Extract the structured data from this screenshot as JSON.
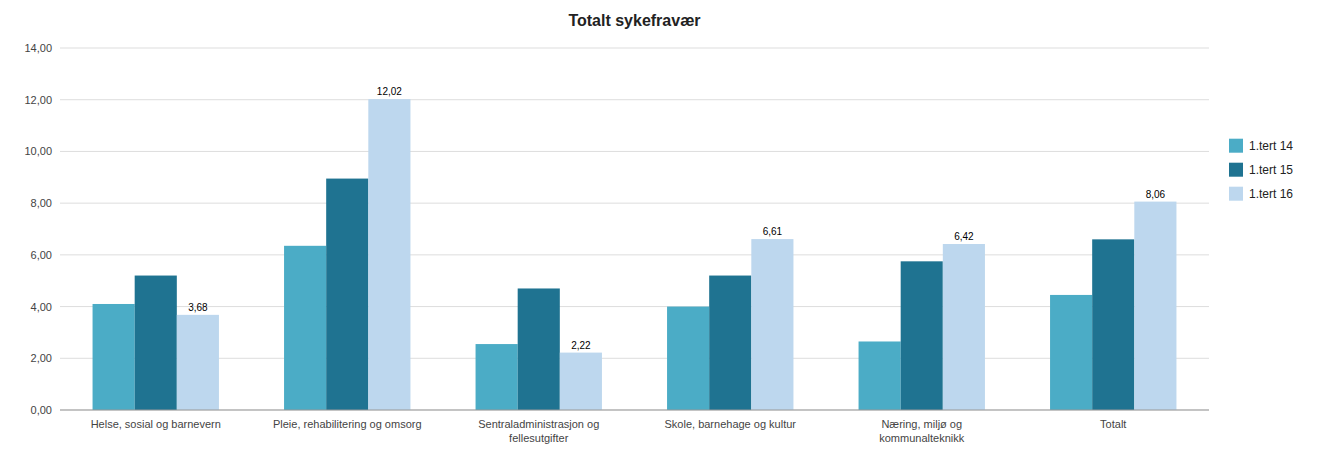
{
  "chart_data": {
    "type": "bar",
    "title": "Totalt sykefravær",
    "categories": [
      "Helse, sosial og barnevern",
      "Pleie, rehabilitering og omsorg",
      "Sentraladministrasjon og\nfellesutgifter",
      "Skole, barnehage og kultur",
      "Næring, miljø og\nkommunalteknikk",
      "Totalt"
    ],
    "series": [
      {
        "name": "1.tert 14",
        "color": "#4BACC6",
        "values": [
          4.1,
          6.35,
          2.55,
          4.0,
          2.65,
          4.45
        ]
      },
      {
        "name": "1.tert 15",
        "color": "#1F7391",
        "values": [
          5.2,
          8.95,
          4.7,
          5.2,
          5.75,
          6.6
        ]
      },
      {
        "name": "1.tert 16",
        "color": "#BDD7EE",
        "values": [
          3.68,
          12.02,
          2.22,
          6.61,
          6.42,
          8.06
        ],
        "data_labels": true,
        "value_labels": [
          "3,68",
          "12,02",
          "2,22",
          "6,61",
          "6,42",
          "8,06"
        ]
      }
    ],
    "ylim": [
      0,
      14.0
    ],
    "yticks": [
      {
        "value": 0.0,
        "label": "0,00"
      },
      {
        "value": 2.0,
        "label": "2,00"
      },
      {
        "value": 4.0,
        "label": "4,00"
      },
      {
        "value": 6.0,
        "label": "6,00"
      },
      {
        "value": 8.0,
        "label": "8,00"
      },
      {
        "value": 10.0,
        "label": "10,00"
      },
      {
        "value": 12.0,
        "label": "12,00"
      },
      {
        "value": 14.0,
        "label": "14,00"
      }
    ],
    "grid": true,
    "legend": "right"
  }
}
